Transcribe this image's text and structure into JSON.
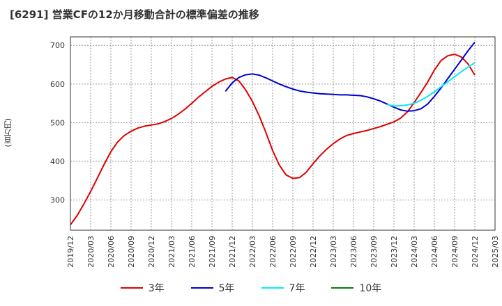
{
  "title": "[6291]  営業CFの12か月移動合計の標準偏差の推移",
  "chart_data": {
    "type": "line",
    "title": "[6291]  営業CFの12か月移動合計の標準偏差の推移",
    "ylabel": "(百万円)",
    "xlabel": "",
    "xlim": [
      "2019-12",
      "2025-03"
    ],
    "ylim": [
      222,
      722
    ],
    "yticks": [
      300,
      400,
      500,
      600,
      700
    ],
    "xticks": [
      "2019/12",
      "2020/03",
      "2020/06",
      "2020/09",
      "2020/12",
      "2021/03",
      "2021/06",
      "2021/09",
      "2021/12",
      "2022/03",
      "2022/06",
      "2022/09",
      "2022/12",
      "2023/03",
      "2023/06",
      "2023/09",
      "2023/12",
      "2024/03",
      "2024/06",
      "2024/09",
      "2024/12",
      "2025/03"
    ],
    "grid": true,
    "legend_position": "bottom",
    "series": [
      {
        "name": "3年",
        "color": "#dd0000",
        "points": [
          [
            "2019-12",
            236
          ],
          [
            "2020-01",
            260
          ],
          [
            "2020-02",
            290
          ],
          [
            "2020-03",
            322
          ],
          [
            "2020-04",
            357
          ],
          [
            "2020-05",
            392
          ],
          [
            "2020-06",
            425
          ],
          [
            "2020-07",
            450
          ],
          [
            "2020-08",
            467
          ],
          [
            "2020-09",
            478
          ],
          [
            "2020-10",
            486
          ],
          [
            "2020-11",
            491
          ],
          [
            "2020-12",
            494
          ],
          [
            "2021-01",
            497
          ],
          [
            "2021-02",
            503
          ],
          [
            "2021-03",
            511
          ],
          [
            "2021-04",
            522
          ],
          [
            "2021-05",
            535
          ],
          [
            "2021-06",
            550
          ],
          [
            "2021-07",
            566
          ],
          [
            "2021-08",
            580
          ],
          [
            "2021-09",
            594
          ],
          [
            "2021-10",
            605
          ],
          [
            "2021-11",
            613
          ],
          [
            "2021-12",
            617
          ],
          [
            "2022-01",
            608
          ],
          [
            "2022-02",
            585
          ],
          [
            "2022-03",
            555
          ],
          [
            "2022-04",
            518
          ],
          [
            "2022-05",
            475
          ],
          [
            "2022-06",
            428
          ],
          [
            "2022-07",
            390
          ],
          [
            "2022-08",
            365
          ],
          [
            "2022-09",
            356
          ],
          [
            "2022-10",
            358
          ],
          [
            "2022-11",
            372
          ],
          [
            "2022-12",
            394
          ],
          [
            "2023-01",
            414
          ],
          [
            "2023-02",
            431
          ],
          [
            "2023-03",
            446
          ],
          [
            "2023-04",
            458
          ],
          [
            "2023-05",
            467
          ],
          [
            "2023-06",
            472
          ],
          [
            "2023-07",
            476
          ],
          [
            "2023-08",
            480
          ],
          [
            "2023-09",
            485
          ],
          [
            "2023-10",
            490
          ],
          [
            "2023-11",
            496
          ],
          [
            "2023-12",
            502
          ],
          [
            "2024-01",
            512
          ],
          [
            "2024-02",
            528
          ],
          [
            "2024-03",
            552
          ],
          [
            "2024-04",
            578
          ],
          [
            "2024-05",
            605
          ],
          [
            "2024-06",
            636
          ],
          [
            "2024-07",
            661
          ],
          [
            "2024-08",
            673
          ],
          [
            "2024-09",
            677
          ],
          [
            "2024-10",
            670
          ],
          [
            "2024-11",
            652
          ],
          [
            "2024-12",
            623
          ]
        ]
      },
      {
        "name": "5年",
        "color": "#0000cc",
        "points": [
          [
            "2021-11",
            581
          ],
          [
            "2021-12",
            603
          ],
          [
            "2022-01",
            617
          ],
          [
            "2022-02",
            624
          ],
          [
            "2022-03",
            626
          ],
          [
            "2022-04",
            623
          ],
          [
            "2022-05",
            616
          ],
          [
            "2022-06",
            608
          ],
          [
            "2022-07",
            600
          ],
          [
            "2022-08",
            593
          ],
          [
            "2022-09",
            587
          ],
          [
            "2022-10",
            582
          ],
          [
            "2022-11",
            579
          ],
          [
            "2022-12",
            577
          ],
          [
            "2023-01",
            575
          ],
          [
            "2023-02",
            574
          ],
          [
            "2023-03",
            573
          ],
          [
            "2023-04",
            572
          ],
          [
            "2023-05",
            572
          ],
          [
            "2023-06",
            571
          ],
          [
            "2023-07",
            570
          ],
          [
            "2023-08",
            567
          ],
          [
            "2023-09",
            562
          ],
          [
            "2023-10",
            556
          ],
          [
            "2023-11",
            548
          ],
          [
            "2023-12",
            540
          ],
          [
            "2024-01",
            533
          ],
          [
            "2024-02",
            530
          ],
          [
            "2024-03",
            531
          ],
          [
            "2024-04",
            536
          ],
          [
            "2024-05",
            548
          ],
          [
            "2024-06",
            568
          ],
          [
            "2024-07",
            590
          ],
          [
            "2024-08",
            614
          ],
          [
            "2024-09",
            638
          ],
          [
            "2024-10",
            662
          ],
          [
            "2024-11",
            686
          ],
          [
            "2024-12",
            708
          ]
        ]
      },
      {
        "name": "7年",
        "color": "#00eeee",
        "points": [
          [
            "2023-11",
            547
          ],
          [
            "2023-12",
            543
          ],
          [
            "2024-01",
            544
          ],
          [
            "2024-02",
            546
          ],
          [
            "2024-03",
            550
          ],
          [
            "2024-04",
            558
          ],
          [
            "2024-05",
            568
          ],
          [
            "2024-06",
            580
          ],
          [
            "2024-07",
            593
          ],
          [
            "2024-08",
            606
          ],
          [
            "2024-09",
            619
          ],
          [
            "2024-10",
            632
          ],
          [
            "2024-11",
            644
          ],
          [
            "2024-12",
            655
          ]
        ]
      },
      {
        "name": "10年",
        "color": "#008000",
        "points": []
      }
    ]
  }
}
